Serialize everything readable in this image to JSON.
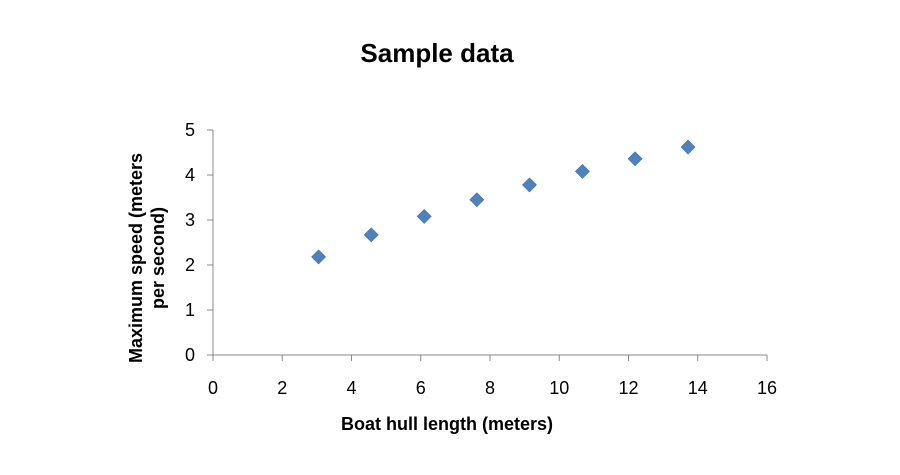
{
  "chart_data": {
    "type": "scatter",
    "title": "Sample data",
    "xlabel": "Boat hull length (meters)",
    "ylabel_lines": [
      "Maximum speed (meters",
      "per second)"
    ],
    "xlim": [
      0,
      16
    ],
    "ylim": [
      0,
      5
    ],
    "xticks": [
      0,
      2,
      4,
      6,
      8,
      10,
      12,
      14,
      16
    ],
    "yticks": [
      0,
      1,
      2,
      3,
      4,
      5
    ],
    "grid": false,
    "legend": "none",
    "marker": "diamond",
    "marker_color": "#4f81bd",
    "points": [
      {
        "x": 3.05,
        "y": 2.18
      },
      {
        "x": 4.57,
        "y": 2.67
      },
      {
        "x": 6.1,
        "y": 3.08
      },
      {
        "x": 7.62,
        "y": 3.45
      },
      {
        "x": 9.14,
        "y": 3.78
      },
      {
        "x": 10.67,
        "y": 4.08
      },
      {
        "x": 12.19,
        "y": 4.36
      },
      {
        "x": 13.72,
        "y": 4.62
      }
    ]
  }
}
